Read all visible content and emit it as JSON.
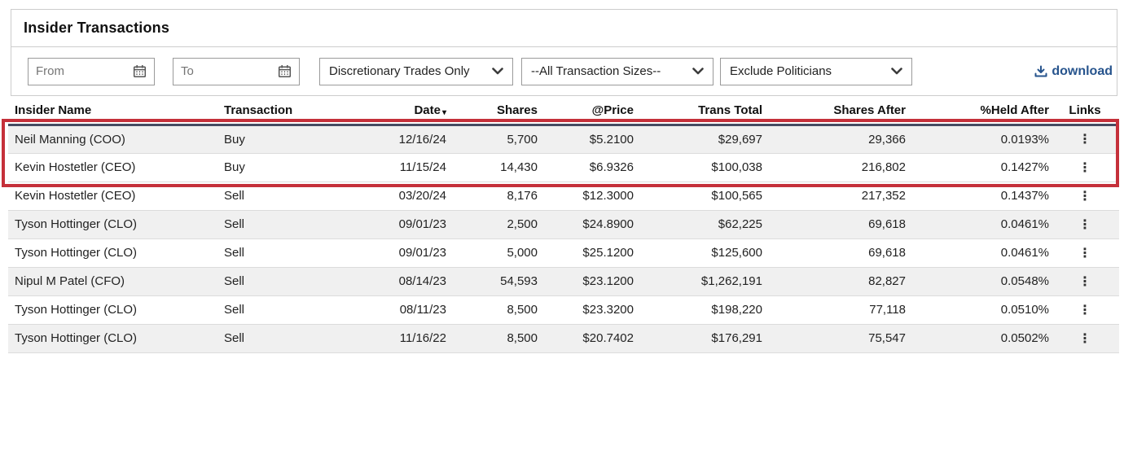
{
  "title": "Insider Transactions",
  "filters": {
    "from_placeholder": "From",
    "to_placeholder": "To",
    "discretionary_dropdown": "Discretionary Trades Only",
    "size_dropdown": "--All Transaction Sizes--",
    "politicians_dropdown": "Exclude Politicians",
    "download_label": "download"
  },
  "table": {
    "columns": [
      "Insider Name",
      "Transaction",
      "Date",
      "Shares",
      "@Price",
      "Trans Total",
      "Shares After",
      "%Held After",
      "Links"
    ],
    "sort": {
      "column": "Date",
      "direction": "desc"
    },
    "sort_icon": "▾",
    "row_action_icon": "⋮",
    "rows": [
      {
        "name": "Neil Manning (COO)",
        "transaction": "Buy",
        "date": "12/16/24",
        "shares": "5,700",
        "price": "$5.2100",
        "total": "$29,697",
        "shares_after": "29,366",
        "held_after": "0.0193%",
        "highlighted": true
      },
      {
        "name": "Kevin Hostetler (CEO)",
        "transaction": "Buy",
        "date": "11/15/24",
        "shares": "14,430",
        "price": "$6.9326",
        "total": "$100,038",
        "shares_after": "216,802",
        "held_after": "0.1427%",
        "highlighted": true
      },
      {
        "name": "Kevin Hostetler (CEO)",
        "transaction": "Sell",
        "date": "03/20/24",
        "shares": "8,176",
        "price": "$12.3000",
        "total": "$100,565",
        "shares_after": "217,352",
        "held_after": "0.1437%",
        "highlighted": false
      },
      {
        "name": "Tyson Hottinger (CLO)",
        "transaction": "Sell",
        "date": "09/01/23",
        "shares": "2,500",
        "price": "$24.8900",
        "total": "$62,225",
        "shares_after": "69,618",
        "held_after": "0.0461%",
        "highlighted": false
      },
      {
        "name": "Tyson Hottinger (CLO)",
        "transaction": "Sell",
        "date": "09/01/23",
        "shares": "5,000",
        "price": "$25.1200",
        "total": "$125,600",
        "shares_after": "69,618",
        "held_after": "0.0461%",
        "highlighted": false
      },
      {
        "name": "Nipul M Patel (CFO)",
        "transaction": "Sell",
        "date": "08/14/23",
        "shares": "54,593",
        "price": "$23.1200",
        "total": "$1,262,191",
        "shares_after": "82,827",
        "held_after": "0.0548%",
        "highlighted": false
      },
      {
        "name": "Tyson Hottinger (CLO)",
        "transaction": "Sell",
        "date": "08/11/23",
        "shares": "8,500",
        "price": "$23.3200",
        "total": "$198,220",
        "shares_after": "77,118",
        "held_after": "0.0510%",
        "highlighted": false
      },
      {
        "name": "Tyson Hottinger (CLO)",
        "transaction": "Sell",
        "date": "11/16/22",
        "shares": "8,500",
        "price": "$20.7402",
        "total": "$176,291",
        "shares_after": "75,547",
        "held_after": "0.0502%",
        "highlighted": false
      }
    ]
  },
  "colors": {
    "highlight_border": "#c5303a",
    "header_underline": "#454b61",
    "link_blue": "#27548d",
    "row_shade": "#f0f0f0"
  }
}
